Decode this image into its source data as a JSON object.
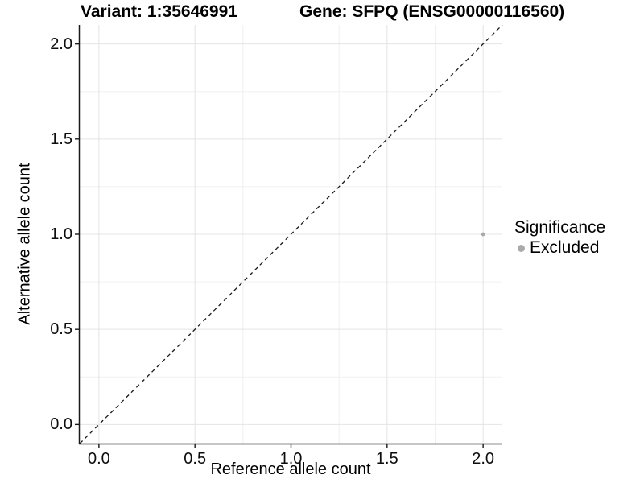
{
  "header": {
    "variant_title": "Variant: 1:35646991",
    "gene_title": "Gene: SFPQ (ENSG00000116560)"
  },
  "chart_data": {
    "type": "scatter",
    "title_left": "Variant: 1:35646991",
    "title_right": "Gene: SFPQ (ENSG00000116560)",
    "xlabel": "Reference allele count",
    "ylabel": "Alternative allele count",
    "xlim": [
      -0.1,
      2.1
    ],
    "ylim": [
      -0.1,
      2.1
    ],
    "xticks": {
      "values": [
        0.0,
        0.5,
        1.0,
        1.5,
        2.0
      ],
      "labels": [
        "0.0",
        "0.5",
        "1.0",
        "1.5",
        "2.0"
      ]
    },
    "yticks": {
      "values": [
        0.0,
        0.5,
        1.0,
        1.5,
        2.0
      ],
      "labels": [
        "0.0",
        "0.5",
        "1.0",
        "1.5",
        "2.0"
      ]
    },
    "xminor": [
      0.25,
      0.75,
      1.25,
      1.75
    ],
    "yminor": [
      0.25,
      0.75,
      1.25,
      1.75
    ],
    "grid": "major+minor",
    "reference_line": {
      "kind": "identity",
      "from": [
        -0.1,
        -0.1
      ],
      "to": [
        2.1,
        2.1
      ],
      "style": "dashed",
      "color": "#1a1a1a"
    },
    "series": [
      {
        "name": "Excluded",
        "color": "#aaaaaa",
        "marker_radius": 2.4,
        "points": [
          [
            2.0,
            1.0
          ]
        ]
      }
    ],
    "legend": {
      "title": "Significance",
      "position": "right",
      "items": [
        {
          "label": "Excluded",
          "color": "#aaaaaa"
        }
      ]
    }
  },
  "colors": {
    "background": "#ffffff",
    "axis_line": "#1a1a1a",
    "tick_mark": "#1a1a1a",
    "grid_major": "#e4e4e4",
    "grid_minor": "#f0f0f0",
    "text": "#000000"
  }
}
